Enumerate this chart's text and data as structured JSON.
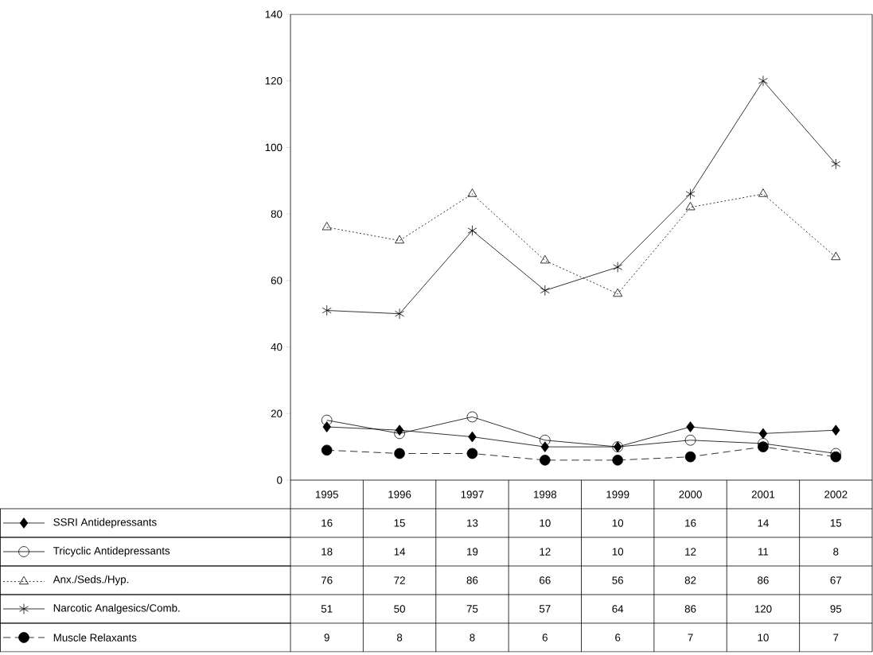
{
  "chart_data": {
    "type": "line",
    "categories": [
      "1995",
      "1996",
      "1997",
      "1998",
      "1999",
      "2000",
      "2001",
      "2002"
    ],
    "series": [
      {
        "name": "SSRI Antidepressants",
        "color": "#000000",
        "marker": "diamond",
        "line_style": "solid",
        "values": [
          16,
          15,
          13,
          10,
          10,
          16,
          14,
          15
        ]
      },
      {
        "name": "Tricyclic Antidepressants",
        "color": "#000000",
        "marker": "circle",
        "line_style": "solid",
        "values": [
          18,
          14,
          19,
          12,
          10,
          12,
          11,
          8
        ]
      },
      {
        "name": "Anx./Seds./Hyp.",
        "color": "#000000",
        "marker": "triangle",
        "line_style": "dotted",
        "values": [
          76,
          72,
          86,
          66,
          56,
          82,
          86,
          67
        ]
      },
      {
        "name": "Narcotic Analgesics/Comb.",
        "color": "#000000",
        "marker": "cross",
        "line_style": "solid",
        "values": [
          51,
          50,
          75,
          57,
          64,
          86,
          120,
          95
        ]
      },
      {
        "name": "Muscle Relaxants",
        "color": "#000000",
        "marker": "circle",
        "line_style": "dashed",
        "values": [
          9,
          8,
          8,
          6,
          6,
          7,
          10,
          7
        ]
      }
    ],
    "ylim": [
      0,
      140
    ],
    "yticks": [
      0,
      20,
      40,
      60,
      80,
      100,
      120,
      140
    ],
    "grid": false,
    "legend": "bottom",
    "data_labels": true
  }
}
